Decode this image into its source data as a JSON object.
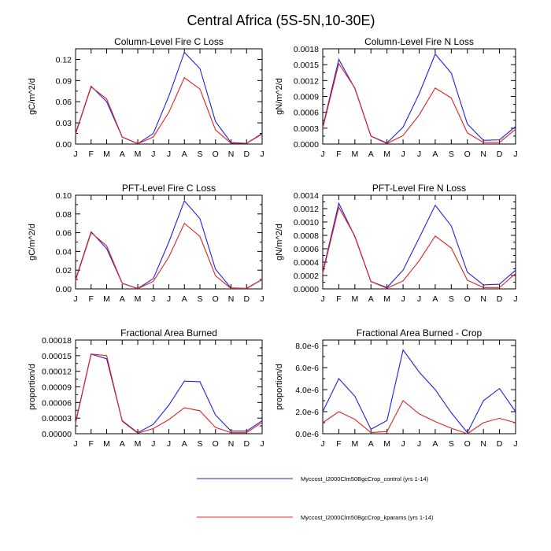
{
  "figure_title": "Central Africa (5S-5N,10-30E)",
  "months": [
    "J",
    "F",
    "M",
    "A",
    "M",
    "J",
    "J",
    "A",
    "S",
    "O",
    "N",
    "D",
    "J"
  ],
  "colors": {
    "control": "#2020e0",
    "kparams": "#e02020"
  },
  "legend": [
    {
      "label": "Myccost_I2000Clm50BgcCrop_control (yrs 1-14)",
      "color": "#2020e0"
    },
    {
      "label": "Myccost_I2000Clm50BgcCrop_kparams (yrs 1-14)",
      "color": "#e02020"
    }
  ],
  "chart_data": [
    {
      "type": "line",
      "title": "Column-Level Fire C Loss",
      "ylabel": "gC/m^2/d",
      "ylim": [
        0,
        0.135
      ],
      "yticks": [
        0,
        0.03,
        0.06,
        0.09,
        0.12
      ],
      "ytick_labels": [
        "0.00",
        "0.03",
        "0.06",
        "0.09",
        "0.12"
      ],
      "series": [
        {
          "name": "Myccost_I2000Clm50BgcCrop_control (yrs 1-14)",
          "values": [
            0.015,
            0.082,
            0.06,
            0.01,
            0.0005,
            0.015,
            0.068,
            0.13,
            0.107,
            0.032,
            0.002,
            0.001,
            0.015
          ]
        },
        {
          "name": "Myccost_I2000Clm50BgcCrop_kparams (yrs 1-14)",
          "values": [
            0.014,
            0.081,
            0.064,
            0.01,
            0.0005,
            0.01,
            0.045,
            0.094,
            0.078,
            0.02,
            0.001,
            0.001,
            0.014
          ]
        }
      ]
    },
    {
      "type": "line",
      "title": "Column-Level Fire N Loss",
      "ylabel": "gN/m^2/d",
      "ylim": [
        0,
        0.0018
      ],
      "yticks": [
        0,
        0.0003,
        0.0006,
        0.0009,
        0.0012,
        0.0015,
        0.0018
      ],
      "ytick_labels": [
        "0.0000",
        "0.0003",
        "0.0006",
        "0.0009",
        "0.0012",
        "0.0015",
        "0.0018"
      ],
      "series": [
        {
          "name": "Myccost_I2000Clm50BgcCrop_control (yrs 1-14)",
          "values": [
            0.00032,
            0.0016,
            0.00105,
            0.00015,
            2e-05,
            0.00032,
            0.00095,
            0.0017,
            0.00134,
            0.00038,
            7e-05,
            8e-05,
            0.00033
          ]
        },
        {
          "name": "Myccost_I2000Clm50BgcCrop_kparams (yrs 1-14)",
          "values": [
            0.0003,
            0.00152,
            0.00106,
            0.00015,
            1e-05,
            0.00016,
            0.00055,
            0.00106,
            0.00087,
            0.00021,
            3e-05,
            3e-05,
            0.00028
          ]
        }
      ]
    },
    {
      "type": "line",
      "title": "PFT-Level Fire C Loss",
      "ylabel": "gC/m^2/d",
      "ylim": [
        0,
        0.1
      ],
      "yticks": [
        0,
        0.02,
        0.04,
        0.06,
        0.08,
        0.1
      ],
      "ytick_labels": [
        "0.00",
        "0.02",
        "0.04",
        "0.06",
        "0.08",
        "0.10"
      ],
      "series": [
        {
          "name": "Myccost_I2000Clm50BgcCrop_control (yrs 1-14)",
          "values": [
            0.01,
            0.061,
            0.043,
            0.006,
            0.0003,
            0.011,
            0.05,
            0.094,
            0.075,
            0.021,
            0.001,
            0.0005,
            0.01
          ]
        },
        {
          "name": "Myccost_I2000Clm50BgcCrop_kparams (yrs 1-14)",
          "values": [
            0.009,
            0.06,
            0.046,
            0.006,
            0.0003,
            0.008,
            0.034,
            0.07,
            0.056,
            0.014,
            0.0005,
            0.0005,
            0.01
          ]
        }
      ]
    },
    {
      "type": "line",
      "title": "PFT-Level Fire N Loss",
      "ylabel": "gN/m^2/d",
      "ylim": [
        0,
        0.0014
      ],
      "yticks": [
        0,
        0.0002,
        0.0004,
        0.0006,
        0.0008,
        0.001,
        0.0012,
        0.0014
      ],
      "ytick_labels": [
        "0.0000",
        "0.0002",
        "0.0004",
        "0.0006",
        "0.0008",
        "0.0010",
        "0.0012",
        "0.0014"
      ],
      "series": [
        {
          "name": "Myccost_I2000Clm50BgcCrop_control (yrs 1-14)",
          "values": [
            0.00025,
            0.00128,
            0.00078,
            0.00011,
            2e-05,
            0.00028,
            0.00076,
            0.00125,
            0.00094,
            0.00025,
            6e-05,
            7e-05,
            0.00028
          ]
        },
        {
          "name": "Myccost_I2000Clm50BgcCrop_kparams (yrs 1-14)",
          "values": [
            0.00023,
            0.00122,
            0.00079,
            0.00011,
            1e-05,
            0.00012,
            0.00042,
            0.00079,
            0.00061,
            0.00013,
            2e-05,
            2e-05,
            0.00023
          ]
        }
      ]
    },
    {
      "type": "line",
      "title": "Fractional Area Burned",
      "ylabel": "proportion/d",
      "ylim": [
        0,
        0.00018
      ],
      "yticks": [
        0,
        3e-05,
        6e-05,
        9e-05,
        0.00012,
        0.00015,
        0.00018
      ],
      "ytick_labels": [
        "0.00000",
        "0.00003",
        "0.00006",
        "0.00009",
        "0.00012",
        "0.00015",
        "0.00018"
      ],
      "series": [
        {
          "name": "Myccost_I2000Clm50BgcCrop_control (yrs 1-14)",
          "values": [
            2.2e-05,
            0.000153,
            0.000144,
            2.5e-05,
            2e-06,
            1.8e-05,
            5.5e-05,
            0.000101,
            0.0001,
            3.6e-05,
            5e-06,
            5e-06,
            2.5e-05
          ]
        },
        {
          "name": "Myccost_I2000Clm50BgcCrop_kparams (yrs 1-14)",
          "values": [
            2e-05,
            0.000153,
            0.00015,
            2.4e-05,
            1e-06,
            1e-05,
            2.7e-05,
            5e-05,
            4.4e-05,
            1.2e-05,
            2e-06,
            2e-06,
            2.2e-05
          ]
        }
      ]
    },
    {
      "type": "line",
      "title": "Fractional Area Burned - Crop",
      "ylabel": "proportion/d",
      "ylim": [
        0,
        8.5e-06
      ],
      "yticks": [
        0,
        2e-06,
        4e-06,
        6e-06,
        8e-06
      ],
      "ytick_labels": [
        "0.0e-6",
        "2.0e-6",
        "4.0e-6",
        "6.0e-6",
        "8.0e-6"
      ],
      "series": [
        {
          "name": "Myccost_I2000Clm50BgcCrop_control (yrs 1-14)",
          "values": [
            2e-06,
            5e-06,
            3.4e-06,
            4e-07,
            1.2e-06,
            7.6e-06,
            5.6e-06,
            4e-06,
            1.9e-06,
            1e-07,
            3e-06,
            4.1e-06,
            2e-06
          ]
        },
        {
          "name": "Myccost_I2000Clm50BgcCrop_kparams (yrs 1-14)",
          "values": [
            1e-06,
            2e-06,
            1.3e-06,
            1e-07,
            2e-07,
            3e-06,
            1.8e-06,
            1.1e-06,
            5e-07,
            0.0,
            1e-06,
            1.4e-06,
            1e-06
          ]
        }
      ]
    }
  ]
}
